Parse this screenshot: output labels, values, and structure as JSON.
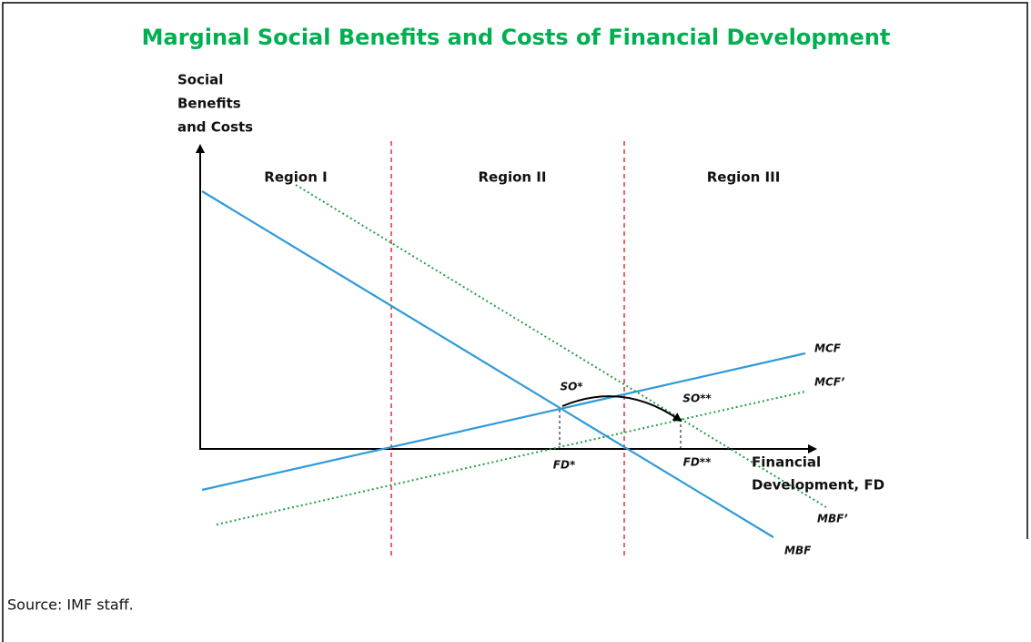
{
  "title": "Marginal Social Benefits and Costs of Financial Development",
  "y_axis_label": [
    "Social",
    "Benefits",
    "and Costs"
  ],
  "x_axis_label": [
    "Financial",
    "Development, FD"
  ],
  "regions": [
    "Region I",
    "Region II",
    "Region III"
  ],
  "curves": {
    "mcf": "MCF",
    "mcf_prime": "MCF’",
    "mbf_prime": "MBF’",
    "mbf": "MBF"
  },
  "points": {
    "so_star": "SO*",
    "so_star_star": "SO**",
    "fd_star": "FD*",
    "fd_star_star": "FD**"
  },
  "source": "Source: IMF staff."
}
